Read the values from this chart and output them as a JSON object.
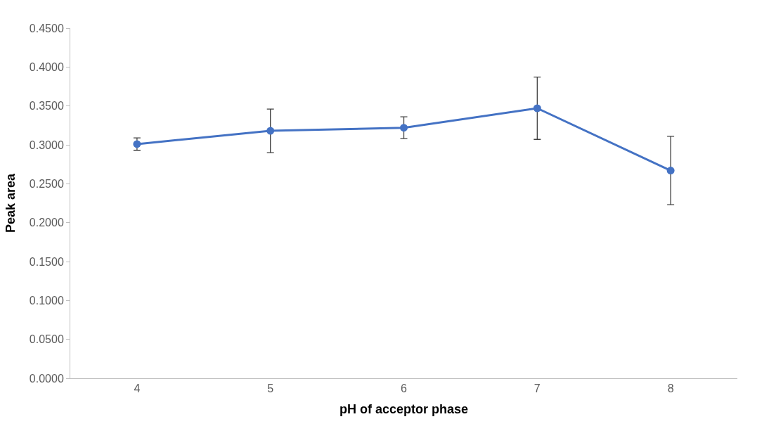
{
  "chart_data": {
    "type": "line",
    "xlabel": "pH of acceptor phase",
    "ylabel": "Peak area",
    "categories": [
      "4",
      "5",
      "6",
      "7",
      "8"
    ],
    "series": [
      {
        "color": "#4472c4",
        "values": [
          0.301,
          0.318,
          0.322,
          0.347,
          0.267
        ],
        "errors": [
          0.008,
          0.028,
          0.014,
          0.04,
          0.044
        ]
      }
    ],
    "ylim": [
      0,
      0.45
    ],
    "yticks": [
      {
        "value": 0,
        "label": "0.0000"
      },
      {
        "value": 0.05,
        "label": "0.0500"
      },
      {
        "value": 0.1,
        "label": "0.1000"
      },
      {
        "value": 0.15,
        "label": "0.1500"
      },
      {
        "value": 0.2,
        "label": "0.2000"
      },
      {
        "value": 0.25,
        "label": "0.2500"
      },
      {
        "value": 0.3,
        "label": "0.3000"
      },
      {
        "value": 0.35,
        "label": "0.3500"
      },
      {
        "value": 0.4,
        "label": "0.4000"
      },
      {
        "value": 0.45,
        "label": "0.4500"
      }
    ],
    "marker": "circle",
    "line_style": "solid"
  }
}
